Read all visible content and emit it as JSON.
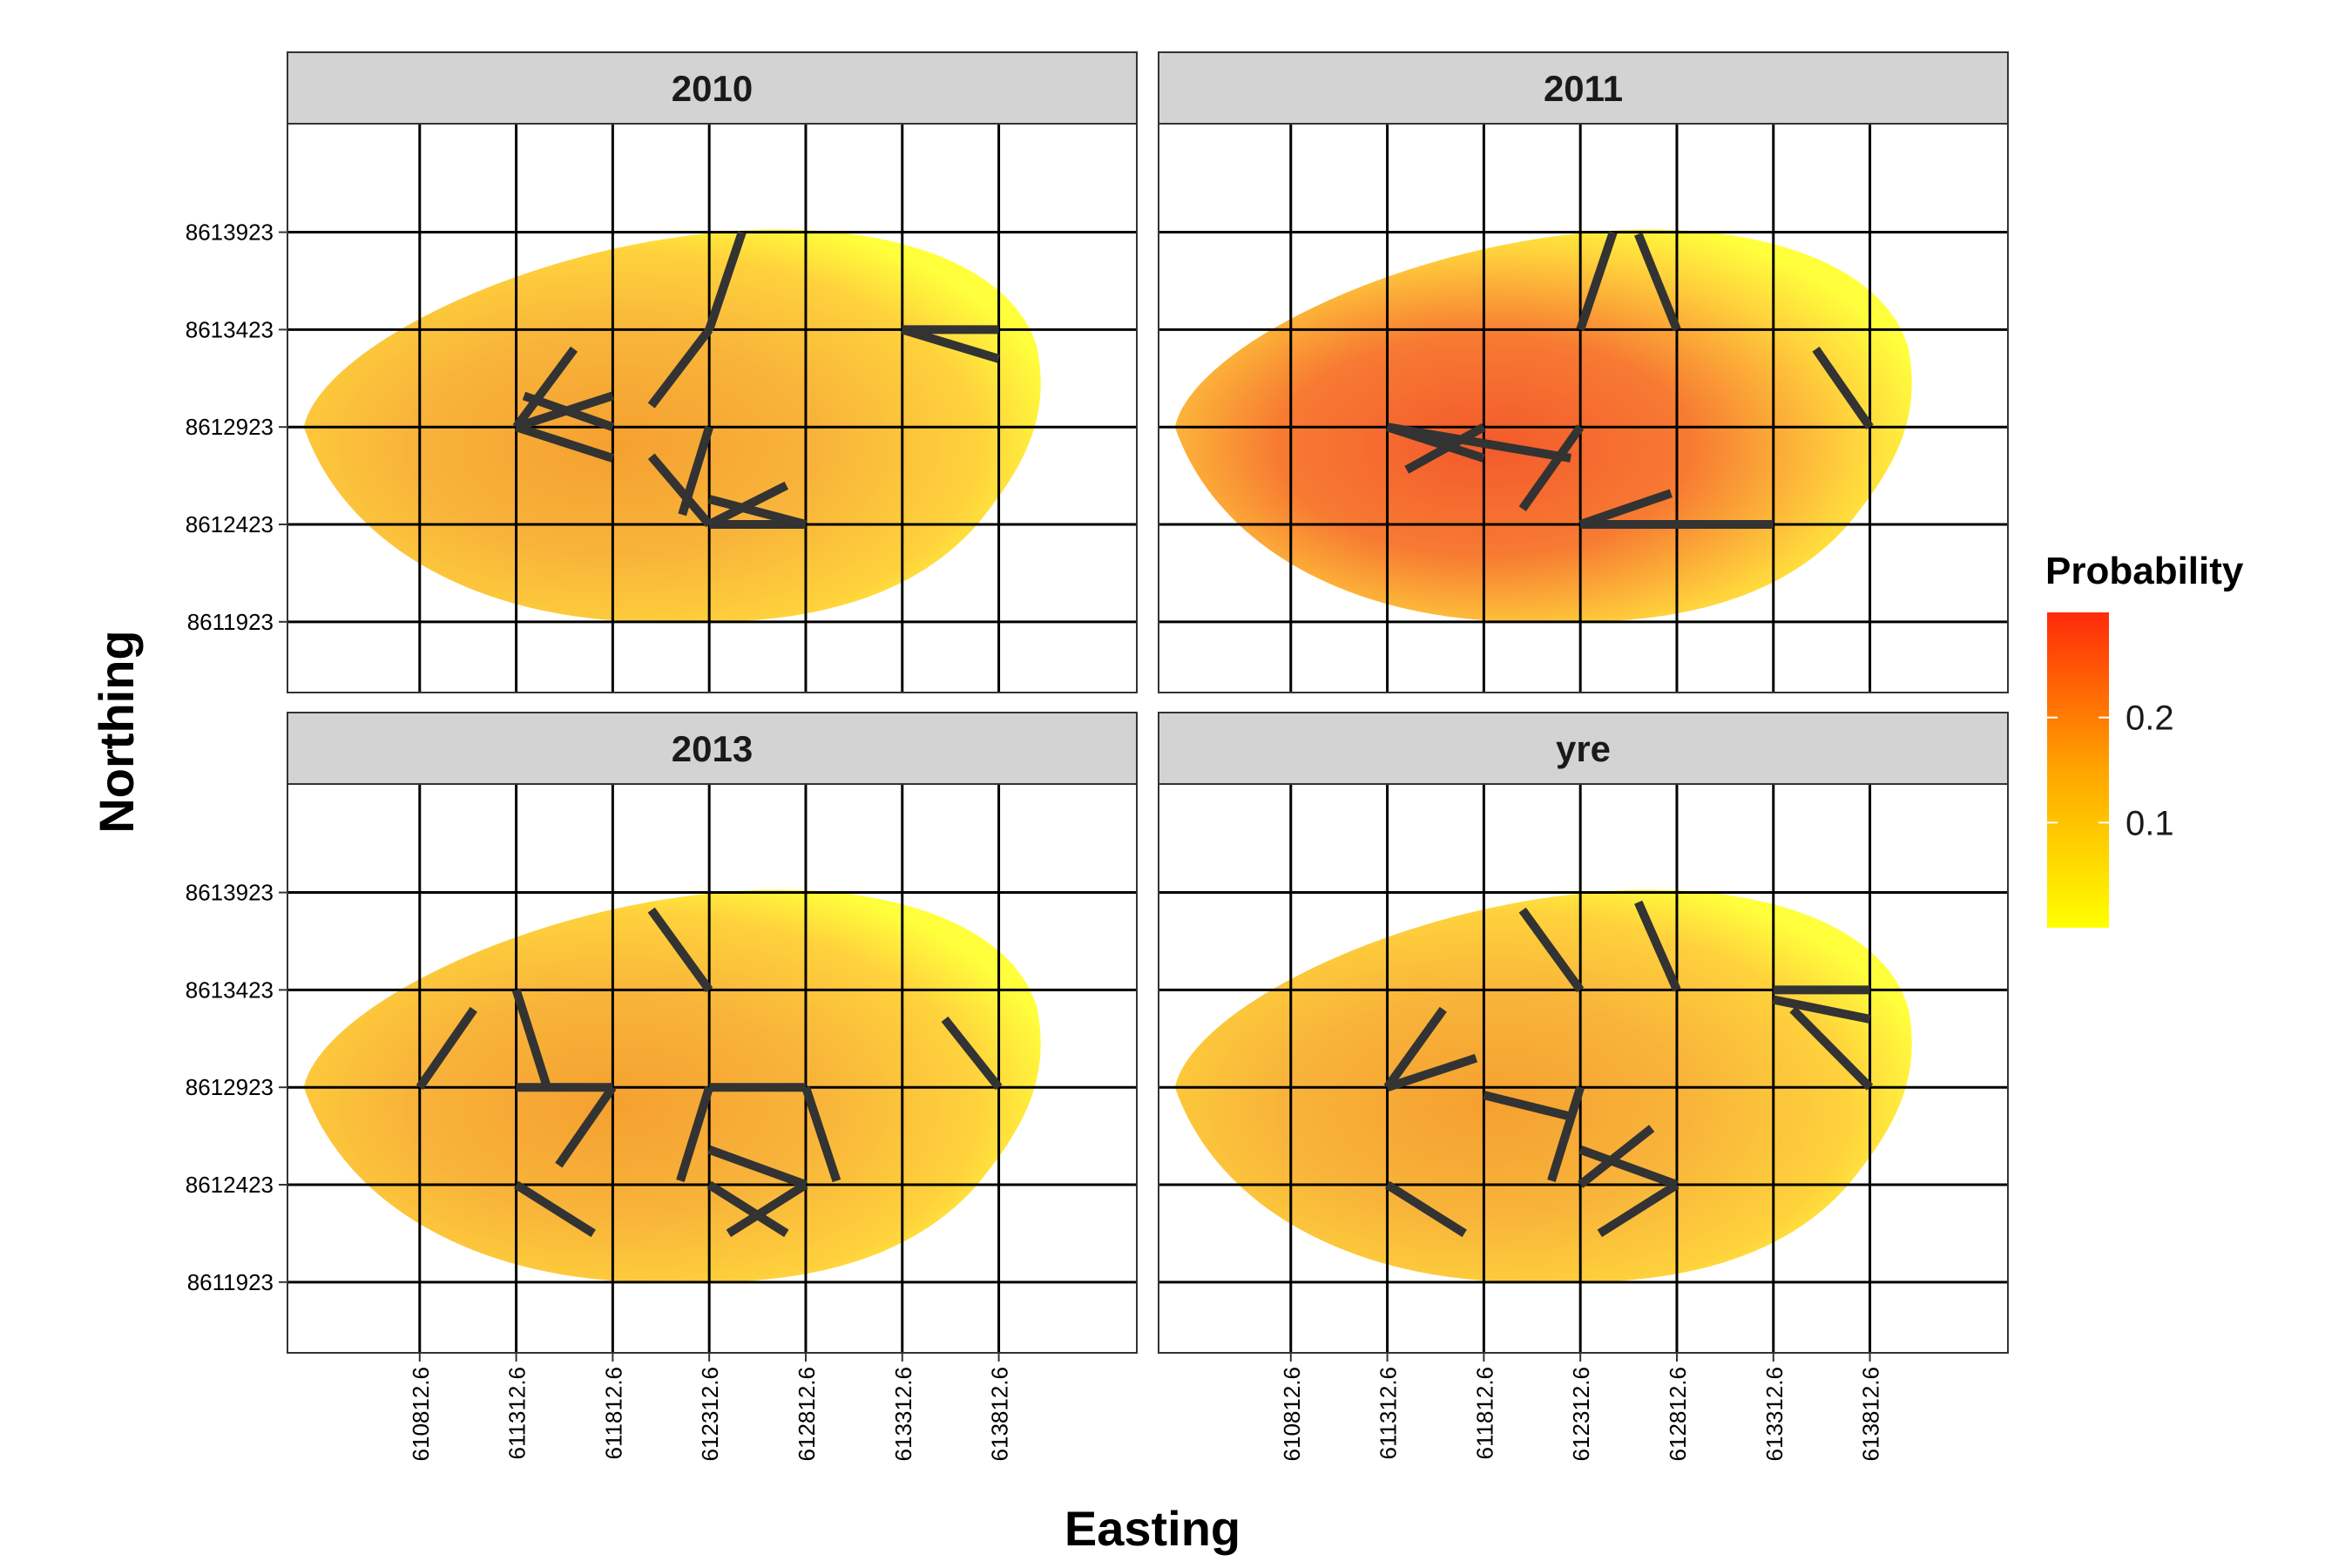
{
  "chart_data": {
    "type": "heatmap",
    "xlabel": "Easting",
    "ylabel": "Northing",
    "x_ticks": [
      "610812.6",
      "611312.6",
      "611812.6",
      "612312.6",
      "612812.6",
      "613312.6",
      "613812.6"
    ],
    "y_ticks": [
      "8613923",
      "8613423",
      "8612923",
      "8612423",
      "8611923"
    ],
    "x_values": [
      610812.6,
      611312.6,
      611812.6,
      612312.6,
      612812.6,
      613312.6,
      613812.6
    ],
    "y_values": [
      8613923,
      8613423,
      8612923,
      8612423,
      8611923
    ],
    "xlim": [
      610127.6,
      614527.6
    ],
    "ylim": [
      8611560,
      8614480
    ],
    "legend": {
      "title": "Probability",
      "ticks": [
        "0.2",
        "0.1"
      ],
      "tick_values": [
        0.2,
        0.1
      ],
      "range": [
        0.0,
        0.3
      ],
      "colors": [
        "#ffff00",
        "#ffa500",
        "#ff2a0a"
      ],
      "placement": "right"
    },
    "panels": [
      {
        "title": "2010",
        "intensity": 0.35,
        "segments": [
          [
            [
              611312.6,
              8612923
            ],
            [
              611612.6,
              8613323
            ]
          ],
          [
            [
              611312.6,
              8612923
            ],
            [
              611812.6,
              8613083
            ]
          ],
          [
            [
              611312.6,
              8612923
            ],
            [
              611812.6,
              8612763
            ]
          ],
          [
            [
              611352.6,
              8613083
            ],
            [
              611812.6,
              8612923
            ]
          ],
          [
            [
              612012.6,
              8613033
            ],
            [
              612312.6,
              8613423
            ]
          ],
          [
            [
              612312.6,
              8613423
            ],
            [
              612482.6,
              8613923
            ]
          ],
          [
            [
              613312.6,
              8613423
            ],
            [
              613812.6,
              8613423
            ]
          ],
          [
            [
              613312.6,
              8613423
            ],
            [
              613812.6,
              8613273
            ]
          ],
          [
            [
              612012.6,
              8612773
            ],
            [
              612312.6,
              8612423
            ]
          ],
          [
            [
              612172.6,
              8612473
            ],
            [
              612312.6,
              8612923
            ]
          ],
          [
            [
              612312.6,
              8612423
            ],
            [
              612812.6,
              8612423
            ]
          ],
          [
            [
              612312.6,
              8612423
            ],
            [
              612712.6,
              8612623
            ]
          ],
          [
            [
              612312.6,
              8612553
            ],
            [
              612812.6,
              8612423
            ]
          ]
        ]
      },
      {
        "title": "2011",
        "intensity": 0.7,
        "segments": [
          [
            [
              611312.6,
              8612923
            ],
            [
              611812.6,
              8612763
            ]
          ],
          [
            [
              611412.6,
              8612703
            ],
            [
              611812.6,
              8612923
            ]
          ],
          [
            [
              611312.6,
              8612923
            ],
            [
              612262.6,
              8612763
            ]
          ],
          [
            [
              612012.6,
              8612503
            ],
            [
              612312.6,
              8612923
            ]
          ],
          [
            [
              612312.6,
              8613423
            ],
            [
              612482.6,
              8613923
            ]
          ],
          [
            [
              612612.6,
              8613913
            ],
            [
              612812.6,
              8613423
            ]
          ],
          [
            [
              613532.6,
              8613323
            ],
            [
              613812.6,
              8612923
            ]
          ],
          [
            [
              612312.6,
              8612423
            ],
            [
              613312.6,
              8612423
            ]
          ],
          [
            [
              612312.6,
              8612423
            ],
            [
              612782.6,
              8612583
            ]
          ]
        ]
      },
      {
        "title": "2013",
        "intensity": 0.35,
        "segments": [
          [
            [
              610812.6,
              8612923
            ],
            [
              611092.6,
              8613323
            ]
          ],
          [
            [
              611312.6,
              8613423
            ],
            [
              611472.6,
              8612923
            ]
          ],
          [
            [
              611312.6,
              8612923
            ],
            [
              611812.6,
              8612923
            ]
          ],
          [
            [
              611812.6,
              8612923
            ],
            [
              611532.6,
              8612523
            ]
          ],
          [
            [
              612012.6,
              8613833
            ],
            [
              612312.6,
              8613423
            ]
          ],
          [
            [
              612312.6,
              8612923
            ],
            [
              612812.6,
              8612923
            ]
          ],
          [
            [
              612312.6,
              8612923
            ],
            [
              612162.6,
              8612443
            ]
          ],
          [
            [
              612812.6,
              8612923
            ],
            [
              612972.6,
              8612443
            ]
          ],
          [
            [
              612312.6,
              8612603
            ],
            [
              612812.6,
              8612423
            ]
          ],
          [
            [
              612412.6,
              8612173
            ],
            [
              612812.6,
              8612423
            ]
          ],
          [
            [
              612712.6,
              8612173
            ],
            [
              612312.6,
              8612423
            ]
          ],
          [
            [
              611312.6,
              8612423
            ],
            [
              611712.6,
              8612173
            ]
          ],
          [
            [
              613532.6,
              8613273
            ],
            [
              613812.6,
              8612923
            ]
          ]
        ]
      },
      {
        "title": "yre",
        "intensity": 0.4,
        "segments": [
          [
            [
              611312.6,
              8612923
            ],
            [
              611602.6,
              8613323
            ]
          ],
          [
            [
              611312.6,
              8612923
            ],
            [
              611772.6,
              8613073
            ]
          ],
          [
            [
              611812.6,
              8612883
            ],
            [
              612262.6,
              8612773
            ]
          ],
          [
            [
              612312.6,
              8612923
            ],
            [
              612162.6,
              8612443
            ]
          ],
          [
            [
              612312.6,
              8612423
            ],
            [
              612682.6,
              8612713
            ]
          ],
          [
            [
              612312.6,
              8612603
            ],
            [
              612812.6,
              8612423
            ]
          ],
          [
            [
              612412.6,
              8612173
            ],
            [
              612812.6,
              8612423
            ]
          ],
          [
            [
              611312.6,
              8612423
            ],
            [
              611712.6,
              8612173
            ]
          ],
          [
            [
              612012.6,
              8613833
            ],
            [
              612312.6,
              8613423
            ]
          ],
          [
            [
              612612.6,
              8613873
            ],
            [
              612812.6,
              8613423
            ]
          ],
          [
            [
              613312.6,
              8613423
            ],
            [
              613812.6,
              8613423
            ]
          ],
          [
            [
              613312.6,
              8613373
            ],
            [
              613812.6,
              8613273
            ]
          ],
          [
            [
              613412.6,
              8613323
            ],
            [
              613812.6,
              8612923
            ]
          ]
        ]
      }
    ]
  }
}
